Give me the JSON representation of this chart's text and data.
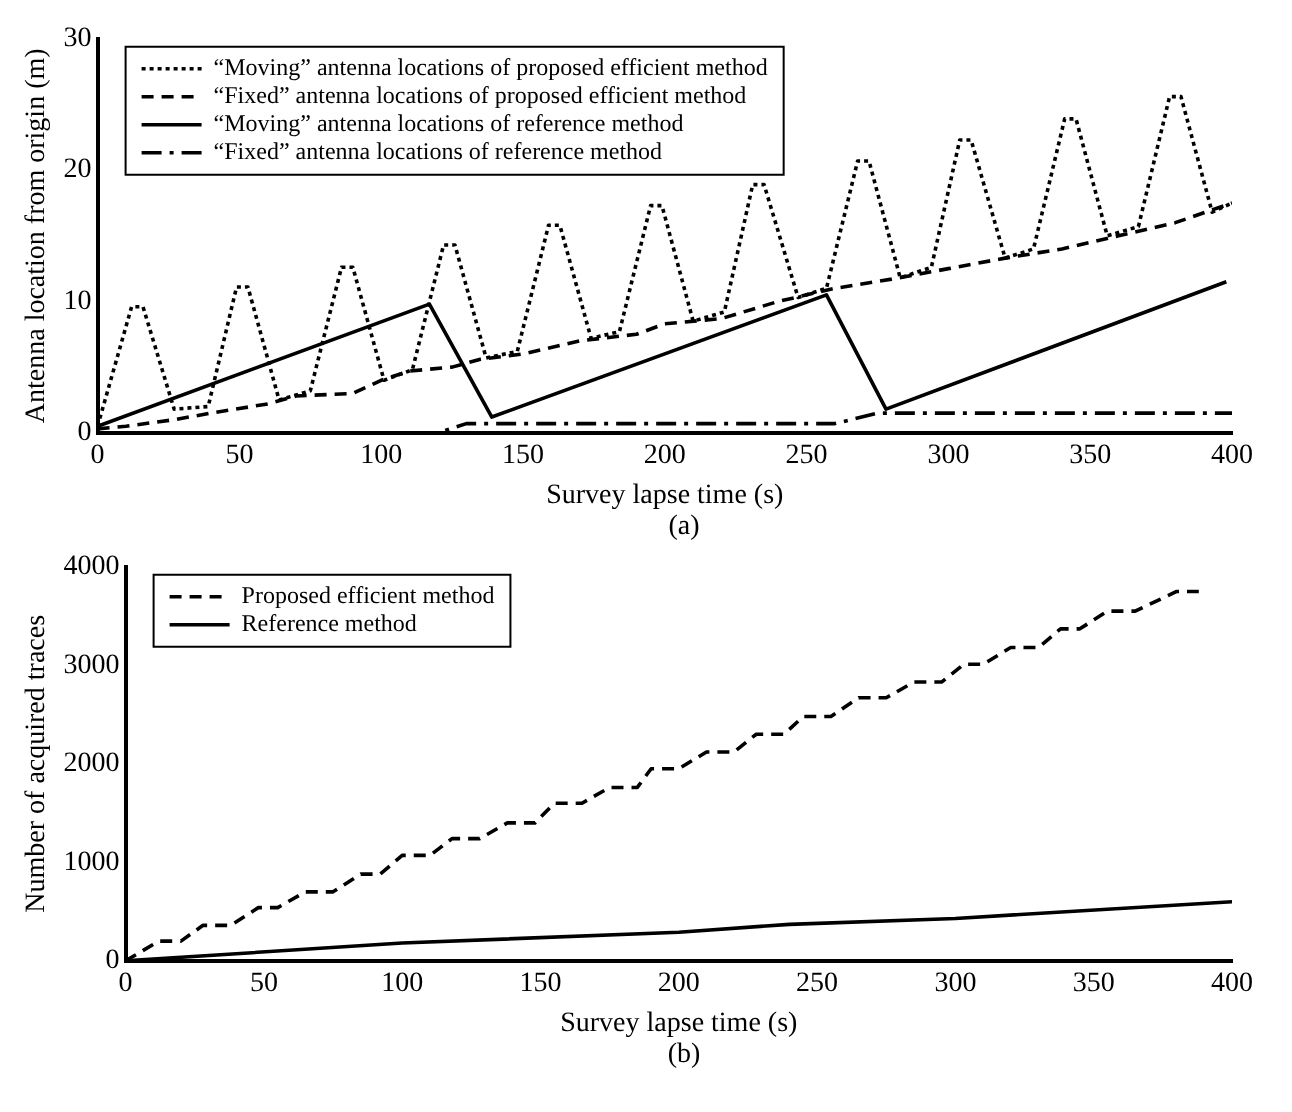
{
  "chart_data": [
    {
      "type": "line",
      "xlabel": "Survey lapse time (s)",
      "ylabel": "Antenna location from origin (m)",
      "annotations": [
        "(a)"
      ],
      "xlim": [
        0,
        400
      ],
      "ylim": [
        0,
        30
      ],
      "xticks": [
        0,
        50,
        100,
        150,
        200,
        250,
        300,
        350,
        400
      ],
      "yticks": [
        0,
        10,
        20,
        30
      ],
      "grid": false,
      "legend": "top left",
      "marker": "none",
      "series": [
        {
          "name": "“Moving” antenna locations of proposed efficient method",
          "color": "#000000",
          "line_style": "dotted",
          "x": [
            0,
            12,
            16,
            27,
            39,
            49,
            53,
            64,
            75,
            86,
            90,
            101,
            111,
            122,
            126,
            137,
            148,
            159,
            163,
            174,
            184,
            195,
            199,
            210,
            221,
            231,
            235,
            247,
            257,
            268,
            272,
            283,
            294,
            304,
            308,
            320,
            330,
            341,
            345,
            356,
            367,
            378,
            382,
            393,
            400
          ],
          "values": [
            0.5,
            9.6,
            9.6,
            1.8,
            2,
            11.1,
            11.1,
            2.5,
            3.2,
            12.6,
            12.6,
            4,
            4.8,
            14.3,
            14.3,
            5.7,
            6.2,
            15.8,
            15.8,
            7.2,
            7.7,
            17.3,
            17.3,
            8.5,
            9.2,
            18.9,
            18.9,
            10.3,
            11,
            20.7,
            20.7,
            11.8,
            12.6,
            22.3,
            22.3,
            13.3,
            14,
            23.9,
            23.9,
            15,
            15.7,
            25.6,
            25.6,
            16.8,
            17.5
          ]
        },
        {
          "name": "“Fixed” antenna locations of proposed efficient method",
          "color": "#000000",
          "line_style": "dashed",
          "x": [
            0,
            10,
            27,
            40,
            60,
            70,
            90,
            100,
            110,
            125,
            135,
            150,
            170,
            190,
            200,
            220,
            240,
            260,
            280,
            300,
            320,
            340,
            360,
            380,
            400
          ],
          "values": [
            0.3,
            0.5,
            1,
            1.5,
            2.2,
            2.8,
            3,
            4,
            4.7,
            5,
            5.6,
            6,
            7,
            7.5,
            8.3,
            8.7,
            10,
            11,
            11.7,
            12.5,
            13.3,
            14,
            15,
            16,
            17.5
          ]
        },
        {
          "name": "“Moving” antenna locations of reference method",
          "color": "#000000",
          "line_style": "solid",
          "x": [
            0,
            117,
            139,
            257,
            278,
            398
          ],
          "values": [
            0.5,
            9.8,
            1.2,
            10.5,
            1.8,
            11.5
          ]
        },
        {
          "name": "“Fixed” antenna locations of reference method",
          "color": "#000000",
          "line_style": "dashdot",
          "x": [
            0,
            120,
            130,
            260,
            275,
            400
          ],
          "values": [
            0,
            0,
            0.7,
            0.7,
            1.5,
            1.5
          ]
        }
      ]
    },
    {
      "type": "line",
      "xlabel": "Survey lapse time (s)",
      "ylabel": "Number of acquired traces",
      "annotations": [
        "(b)"
      ],
      "xlim": [
        0,
        400
      ],
      "ylim": [
        0,
        4000
      ],
      "xticks": [
        0,
        50,
        100,
        150,
        200,
        250,
        300,
        350,
        400
      ],
      "yticks": [
        0,
        1000,
        2000,
        3000,
        4000
      ],
      "grid": false,
      "legend": "top left",
      "marker": "none",
      "series": [
        {
          "name": "Proposed efficient method",
          "color": "#000000",
          "line_style": "dashed",
          "x": [
            0,
            12,
            20,
            28,
            38,
            48,
            55,
            65,
            75,
            85,
            92,
            100,
            110,
            118,
            128,
            138,
            148,
            155,
            165,
            175,
            185,
            190,
            200,
            210,
            220,
            228,
            238,
            245,
            255,
            265,
            275,
            285,
            295,
            303,
            310,
            320,
            330,
            338,
            345,
            355,
            365,
            380,
            388
          ],
          "values": [
            0,
            200,
            200,
            360,
            360,
            540,
            540,
            700,
            700,
            880,
            880,
            1070,
            1070,
            1240,
            1240,
            1400,
            1400,
            1600,
            1600,
            1760,
            1760,
            1950,
            1950,
            2120,
            2120,
            2300,
            2300,
            2480,
            2480,
            2670,
            2670,
            2830,
            2830,
            3010,
            3010,
            3180,
            3180,
            3370,
            3370,
            3550,
            3550,
            3750,
            3750
          ]
        },
        {
          "name": "Reference method",
          "color": "#000000",
          "line_style": "solid",
          "x": [
            0,
            100,
            200,
            240,
            300,
            400
          ],
          "values": [
            0,
            180,
            290,
            370,
            430,
            600
          ]
        }
      ]
    }
  ]
}
